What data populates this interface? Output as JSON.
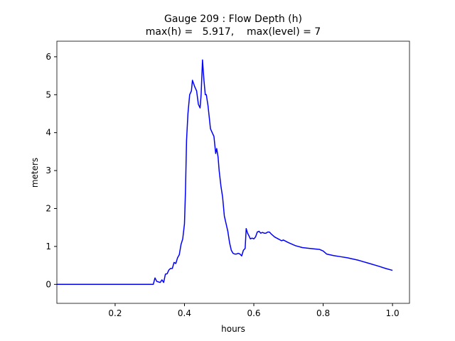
{
  "chart_data": {
    "type": "line",
    "title": "Gauge 209 : Flow Depth (h)",
    "subtitle": "max(h) =   5.917,    max(level) = 7",
    "xlabel": "hours",
    "ylabel": "meters",
    "xlim": [
      0.032,
      1.049
    ],
    "ylim": [
      -0.5,
      6.41
    ],
    "xticks": [
      0.2,
      0.4,
      0.6,
      0.8,
      {
        "value": 1,
        "label": "1.0"
      }
    ],
    "yticks": [
      0,
      1,
      2,
      3,
      4,
      5,
      6
    ],
    "grid": false,
    "series": [
      {
        "color": "#0000ff",
        "x": [
          0.032,
          0.31,
          0.315,
          0.32,
          0.33,
          0.335,
          0.34,
          0.345,
          0.35,
          0.355,
          0.36,
          0.365,
          0.37,
          0.375,
          0.38,
          0.385,
          0.39,
          0.395,
          0.4,
          0.403,
          0.406,
          0.41,
          0.415,
          0.42,
          0.423,
          0.43,
          0.435,
          0.44,
          0.445,
          0.448,
          0.452,
          0.456,
          0.46,
          0.463,
          0.468,
          0.475,
          0.48,
          0.485,
          0.49,
          0.493,
          0.497,
          0.5,
          0.505,
          0.51,
          0.515,
          0.52,
          0.525,
          0.53,
          0.535,
          0.54,
          0.545,
          0.55,
          0.555,
          0.56,
          0.565,
          0.57,
          0.575,
          0.578,
          0.582,
          0.585,
          0.59,
          0.595,
          0.6,
          0.605,
          0.61,
          0.615,
          0.62,
          0.625,
          0.63,
          0.635,
          0.64,
          0.645,
          0.65,
          0.66,
          0.67,
          0.68,
          0.685,
          0.7,
          0.72,
          0.74,
          0.76,
          0.78,
          0.79,
          0.8,
          0.81,
          0.83,
          0.85,
          0.87,
          0.9,
          0.93,
          0.96,
          0.98,
          1.0
        ],
        "values": [
          0,
          0,
          0.17,
          0.08,
          0.05,
          0.12,
          0.05,
          0.27,
          0.28,
          0.38,
          0.42,
          0.42,
          0.58,
          0.55,
          0.7,
          0.78,
          1.05,
          1.2,
          1.6,
          2.5,
          3.8,
          4.5,
          5.0,
          5.1,
          5.38,
          5.2,
          5.1,
          4.75,
          4.65,
          5.0,
          5.917,
          5.4,
          5.0,
          5.0,
          4.7,
          4.1,
          4.0,
          3.9,
          3.45,
          3.58,
          3.35,
          3.0,
          2.6,
          2.3,
          1.8,
          1.6,
          1.4,
          1.1,
          0.9,
          0.82,
          0.8,
          0.8,
          0.82,
          0.8,
          0.75,
          0.9,
          0.95,
          1.47,
          1.35,
          1.3,
          1.2,
          1.22,
          1.2,
          1.25,
          1.38,
          1.4,
          1.35,
          1.37,
          1.35,
          1.35,
          1.38,
          1.38,
          1.33,
          1.25,
          1.2,
          1.15,
          1.17,
          1.1,
          1.02,
          0.97,
          0.95,
          0.93,
          0.92,
          0.88,
          0.8,
          0.76,
          0.73,
          0.7,
          0.64,
          0.56,
          0.48,
          0.42,
          0.37
        ]
      }
    ]
  }
}
